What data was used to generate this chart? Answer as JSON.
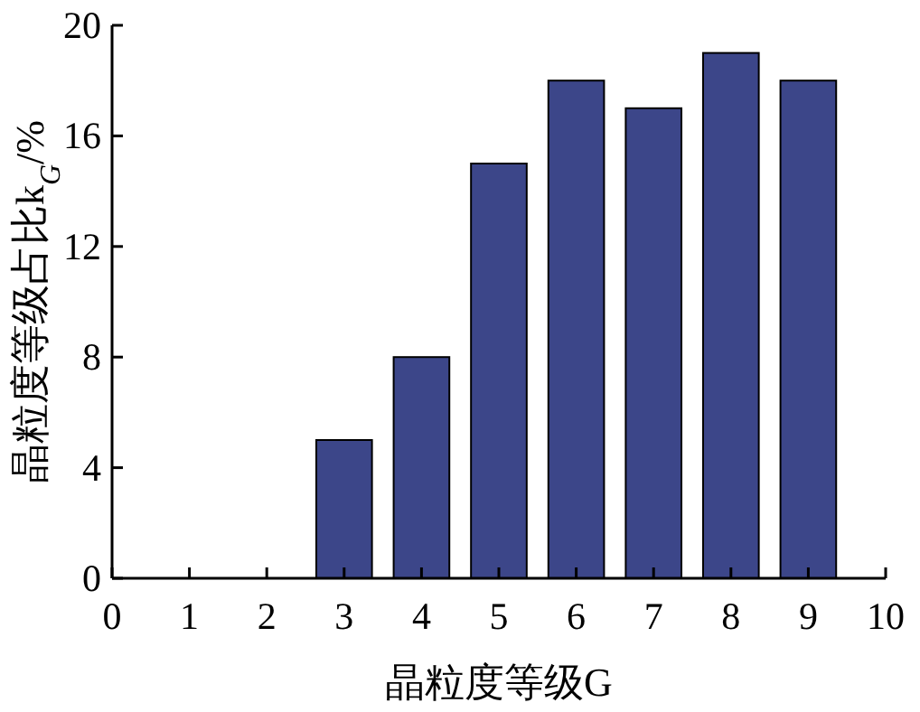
{
  "chart_data": {
    "type": "bar",
    "xlabel": "晶粒度等级G",
    "ylabel": "晶粒度等级占比k$_{G}$/%",
    "x": [
      3,
      4,
      5,
      6,
      7,
      8,
      9
    ],
    "values": [
      5,
      8,
      15,
      18,
      17,
      19,
      18
    ],
    "color": "#3c4689",
    "xlim": [
      0,
      10
    ],
    "xticks": [
      0,
      1,
      2,
      3,
      4,
      5,
      6,
      7,
      8,
      9,
      10
    ],
    "ylim": [
      0,
      20
    ],
    "yticks": [
      0,
      4,
      8,
      12,
      16,
      20
    ]
  }
}
